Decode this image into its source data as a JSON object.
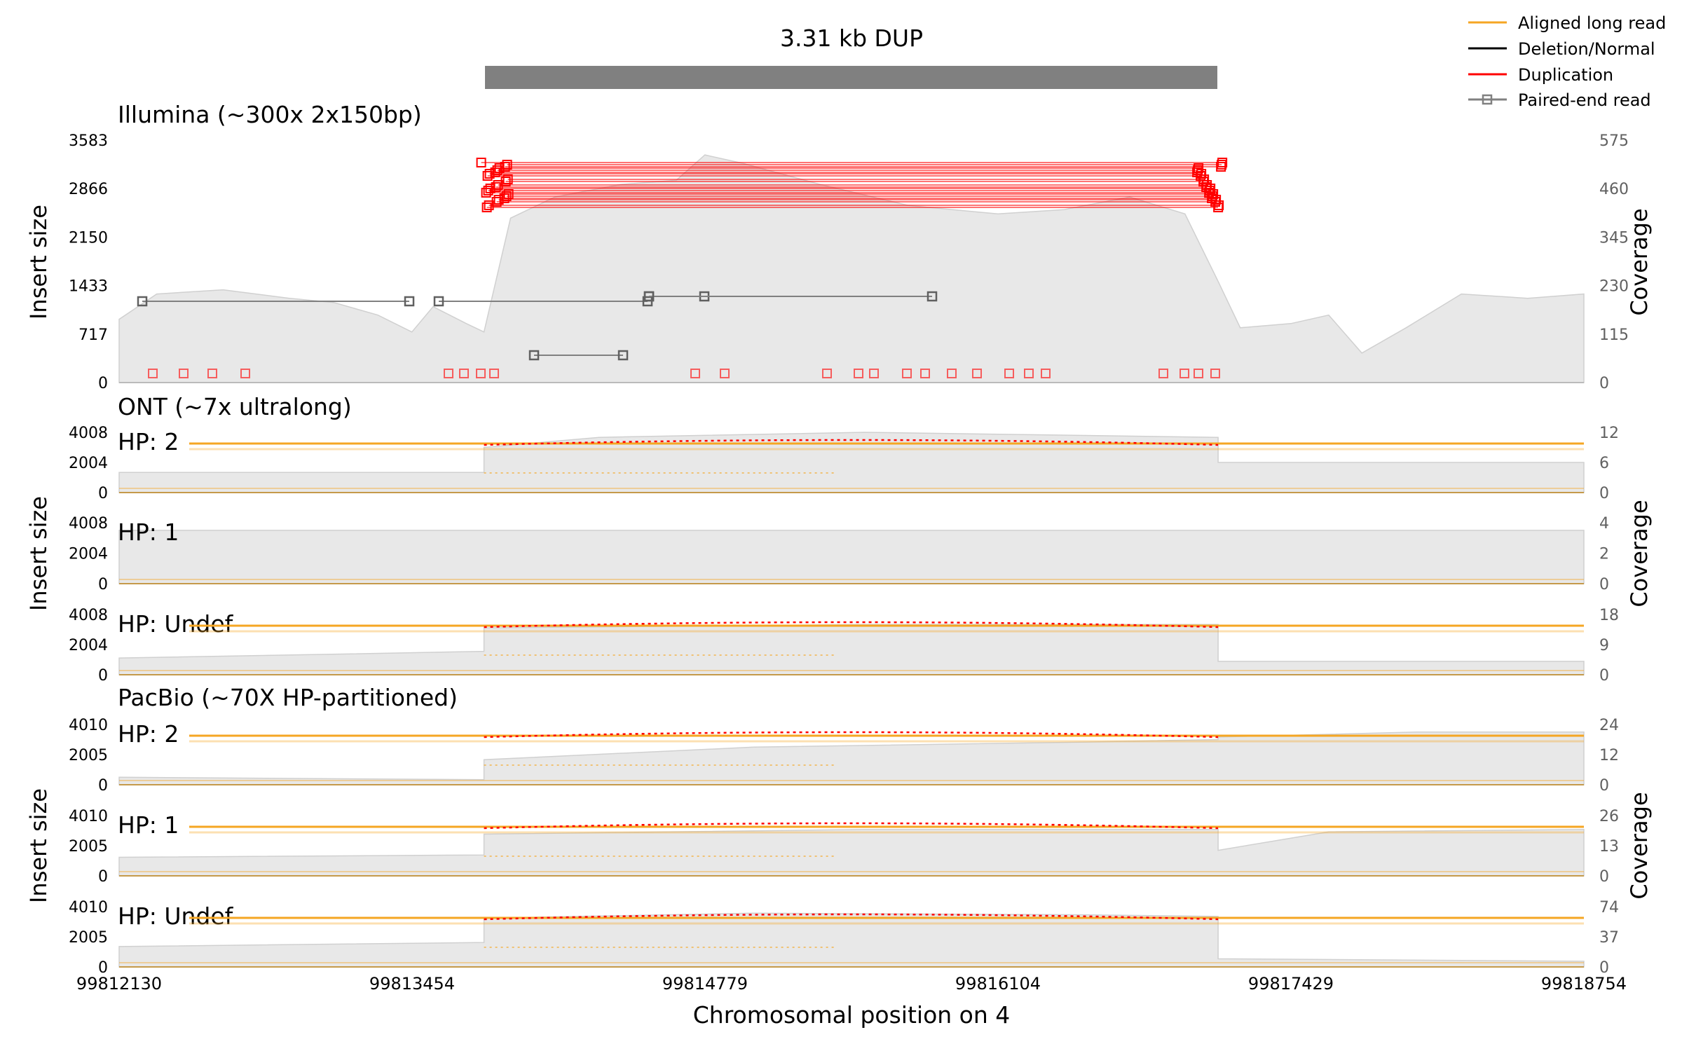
{
  "chart_data": {
    "type": "line",
    "title": "3.31 kb DUP",
    "xlabel": "Chromosomal position on 4",
    "xlim": [
      99812130,
      99818754
    ],
    "x_ticks": [
      "99812130",
      "99813454",
      "99814779",
      "99816104",
      "99817429",
      "99818754"
    ],
    "sv_region": [
      99813780,
      99817100
    ],
    "legend": {
      "placement": "top-right",
      "items": [
        {
          "label": "Aligned long read",
          "color": "#f5a623"
        },
        {
          "label": "Deletion/Normal",
          "color": "#000000"
        },
        {
          "label": "Duplication",
          "color": "#ff0000"
        },
        {
          "label": "Paired-end read",
          "color": "#808080"
        }
      ]
    },
    "y_label_left": "Insert size",
    "y_label_right": "Coverage",
    "sections": [
      {
        "title": "Illumina (~300x 2x150bp)"
      },
      {
        "title": "ONT (~7x ultralong)"
      },
      {
        "title": "PacBio (~70X HP-partitioned)"
      }
    ],
    "panels": [
      {
        "id": "illumina",
        "label": "",
        "y_ticks": [
          "3583",
          "2866",
          "2150",
          "1433",
          "717",
          "0"
        ],
        "cov_ticks": [
          "575",
          "460",
          "345",
          "230",
          "115",
          "0"
        ],
        "coverage_profile": [
          [
            99812130,
            150
          ],
          [
            99812300,
            210
          ],
          [
            99812600,
            220
          ],
          [
            99812900,
            200
          ],
          [
            99813100,
            190
          ],
          [
            99813300,
            160
          ],
          [
            99813454,
            120
          ],
          [
            99813550,
            180
          ],
          [
            99813700,
            140
          ],
          [
            99813780,
            120
          ],
          [
            99813900,
            390
          ],
          [
            99814100,
            440
          ],
          [
            99814400,
            470
          ],
          [
            99814650,
            480
          ],
          [
            99814779,
            540
          ],
          [
            99814950,
            520
          ],
          [
            99815300,
            470
          ],
          [
            99815700,
            420
          ],
          [
            99816104,
            400
          ],
          [
            99816400,
            410
          ],
          [
            99816700,
            440
          ],
          [
            99816950,
            400
          ],
          [
            99817100,
            240
          ],
          [
            99817200,
            130
          ],
          [
            99817429,
            140
          ],
          [
            99817600,
            160
          ],
          [
            99817750,
            70
          ],
          [
            99817950,
            130
          ],
          [
            99818200,
            210
          ],
          [
            99818500,
            200
          ],
          [
            99818754,
            210
          ]
        ],
        "coverage_max": 575
      },
      {
        "id": "ont-hp2",
        "label": "HP: 2",
        "y_ticks": [
          "4008",
          "2004",
          "0"
        ],
        "cov_ticks": [
          "12",
          "6",
          "0"
        ],
        "coverage_profile": [
          [
            99812130,
            4
          ],
          [
            99813780,
            4
          ],
          [
            99813780,
            9
          ],
          [
            99814300,
            11
          ],
          [
            99815500,
            12
          ],
          [
            99817100,
            11
          ],
          [
            99817100,
            6
          ],
          [
            99818754,
            6
          ]
        ],
        "coverage_max": 12
      },
      {
        "id": "ont-hp1",
        "label": "HP: 1",
        "y_ticks": [
          "4008",
          "2004",
          "0"
        ],
        "cov_ticks": [
          "4",
          "2",
          "0"
        ],
        "coverage_profile": [
          [
            99812130,
            3.5
          ],
          [
            99818754,
            3.5
          ]
        ],
        "coverage_max": 4
      },
      {
        "id": "ont-hpundef",
        "label": "HP: Undef",
        "y_ticks": [
          "4008",
          "2004",
          "0"
        ],
        "cov_ticks": [
          "18",
          "9",
          "0"
        ],
        "coverage_profile": [
          [
            99812130,
            5
          ],
          [
            99813000,
            6
          ],
          [
            99813780,
            7
          ],
          [
            99813780,
            14
          ],
          [
            99815500,
            15
          ],
          [
            99817100,
            15
          ],
          [
            99817100,
            4
          ],
          [
            99818754,
            4
          ]
        ],
        "coverage_max": 18
      },
      {
        "id": "pacbio-hp2",
        "label": "HP: 2",
        "y_ticks": [
          "4010",
          "2005",
          "0"
        ],
        "cov_ticks": [
          "24",
          "12",
          "0"
        ],
        "coverage_profile": [
          [
            99812130,
            3
          ],
          [
            99813780,
            2
          ],
          [
            99813780,
            10
          ],
          [
            99815000,
            15
          ],
          [
            99816500,
            17
          ],
          [
            99817100,
            18
          ],
          [
            99817100,
            19
          ],
          [
            99818000,
            21
          ],
          [
            99818754,
            21
          ]
        ],
        "coverage_max": 24
      },
      {
        "id": "pacbio-hp1",
        "label": "HP: 1",
        "y_ticks": [
          "4010",
          "2005",
          "0"
        ],
        "cov_ticks": [
          "26",
          "13",
          "0"
        ],
        "coverage_profile": [
          [
            99812130,
            8
          ],
          [
            99813780,
            9
          ],
          [
            99813780,
            18
          ],
          [
            99815500,
            20
          ],
          [
            99817100,
            20
          ],
          [
            99817100,
            11
          ],
          [
            99817600,
            19
          ],
          [
            99818754,
            20
          ]
        ],
        "coverage_max": 26
      },
      {
        "id": "pacbio-hpundef",
        "label": "HP: Undef",
        "y_ticks": [
          "4010",
          "2005",
          "0"
        ],
        "cov_ticks": [
          "74",
          "37",
          "0"
        ],
        "coverage_profile": [
          [
            99812130,
            25
          ],
          [
            99813780,
            30
          ],
          [
            99813780,
            60
          ],
          [
            99815000,
            66
          ],
          [
            99816500,
            64
          ],
          [
            99817100,
            62
          ],
          [
            99817100,
            10
          ],
          [
            99818754,
            7
          ]
        ],
        "coverage_max": 74
      }
    ]
  }
}
